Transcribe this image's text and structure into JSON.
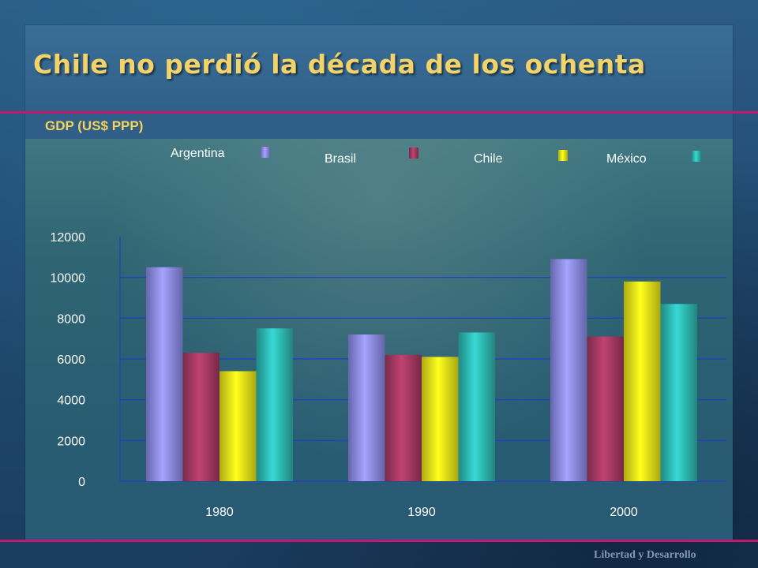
{
  "slide": {
    "title": "Chile no perdió la década de los ochenta",
    "subtitle": "GDP (US$ PPP)",
    "footer": "Libertad y Desarrollo"
  },
  "colors": {
    "accent_rule": "#c2186f",
    "title": "#f2d36b"
  },
  "chart_data": {
    "type": "bar",
    "categories": [
      "1980",
      "1990",
      "2000"
    ],
    "series": [
      {
        "name": "Argentina",
        "color": "#8f8ff0",
        "values": [
          10500,
          7200,
          10900
        ]
      },
      {
        "name": "Brasil",
        "color": "#a83a62",
        "values": [
          6300,
          6200,
          7100
        ]
      },
      {
        "name": "Chile",
        "color": "#f2ee1a",
        "values": [
          5400,
          6100,
          9800
        ]
      },
      {
        "name": "México",
        "color": "#2fbdb7",
        "values": [
          7500,
          7300,
          8700
        ]
      }
    ],
    "ylim": [
      0,
      12000
    ],
    "yticks": [
      "0",
      "2000",
      "4000",
      "6000",
      "8000",
      "10000",
      "12000"
    ],
    "grid": true,
    "legend": "top"
  }
}
